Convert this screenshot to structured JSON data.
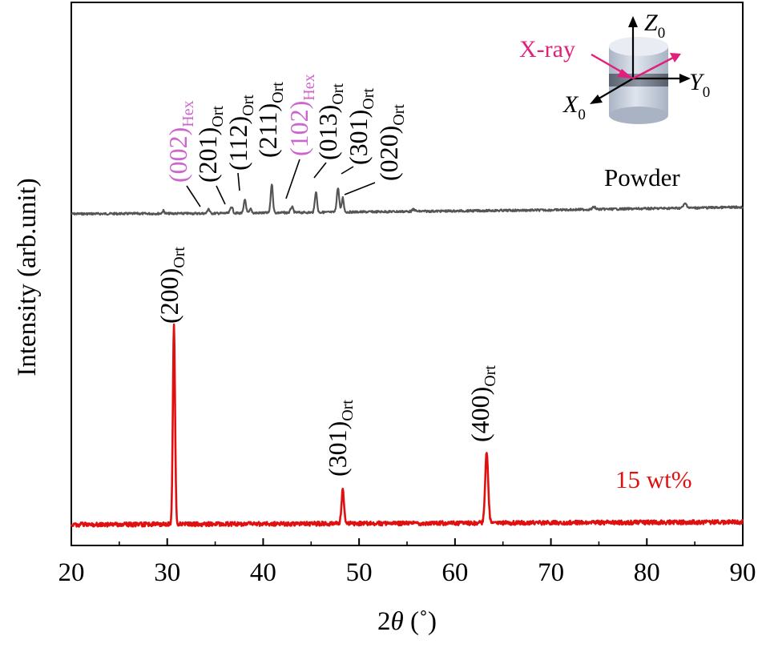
{
  "chart_data": {
    "type": "line",
    "xlabel_prefix": "2",
    "xlabel_var": "θ",
    "xlabel_suffix": " (˚)",
    "ylabel": "Intensity (arb.unit)",
    "xlim": [
      20,
      90
    ],
    "xticks": [
      "20",
      "30",
      "40",
      "50",
      "60",
      "70",
      "80",
      "90"
    ],
    "series": [
      {
        "name": "Powder",
        "color": "#555555",
        "label_color": "#000000",
        "baseline": [
          [
            20,
            0.0
          ],
          [
            35,
            0.1
          ],
          [
            50,
            0.4
          ],
          [
            70,
            0.8
          ],
          [
            90,
            1.4
          ]
        ],
        "peaks": [
          {
            "x": 29.6,
            "h": 0.6,
            "w": 0.15
          },
          {
            "x": 34.3,
            "h": 1.0,
            "w": 0.15
          },
          {
            "x": 36.7,
            "h": 1.4,
            "w": 0.18
          },
          {
            "x": 38.1,
            "h": 2.8,
            "w": 0.16
          },
          {
            "x": 38.7,
            "h": 0.8,
            "w": 0.15
          },
          {
            "x": 40.9,
            "h": 6.0,
            "w": 0.16
          },
          {
            "x": 43.0,
            "h": 1.2,
            "w": 0.18
          },
          {
            "x": 45.5,
            "h": 4.3,
            "w": 0.16
          },
          {
            "x": 47.8,
            "h": 5.0,
            "w": 0.18
          },
          {
            "x": 48.3,
            "h": 3.0,
            "w": 0.15
          },
          {
            "x": 55.7,
            "h": 0.4,
            "w": 0.2
          },
          {
            "x": 74.5,
            "h": 0.5,
            "w": 0.2
          },
          {
            "x": 84.0,
            "h": 0.9,
            "w": 0.25
          }
        ]
      },
      {
        "name": "15 wt%",
        "color": "#e01010",
        "label_color": "#e01010",
        "baseline": [
          [
            20,
            0.0
          ],
          [
            90,
            0.3
          ]
        ],
        "peaks": [
          {
            "x": 30.7,
            "h": 23.0,
            "w": 0.16
          },
          {
            "x": 48.3,
            "h": 4.0,
            "w": 0.18
          },
          {
            "x": 63.3,
            "h": 8.3,
            "w": 0.22
          }
        ]
      }
    ],
    "annotations": [
      {
        "text": "(002)",
        "sub": "Hex",
        "series": "Powder",
        "color": "#cc66cc"
      },
      {
        "text": "(201)",
        "sub": "Ort",
        "series": "Powder",
        "color": "#000000"
      },
      {
        "text": "(112)",
        "sub": "Ort",
        "series": "Powder",
        "color": "#000000"
      },
      {
        "text": "(211)",
        "sub": "Ort",
        "series": "Powder",
        "color": "#000000"
      },
      {
        "text": "(102)",
        "sub": "Hex",
        "series": "Powder",
        "color": "#cc66cc"
      },
      {
        "text": "(013)",
        "sub": "Ort",
        "series": "Powder",
        "color": "#000000"
      },
      {
        "text": "(301)",
        "sub": "Ort",
        "series": "Powder",
        "color": "#000000"
      },
      {
        "text": "(020)",
        "sub": "Ort",
        "series": "Powder",
        "color": "#000000"
      },
      {
        "text": "(200)",
        "sub": "Ort",
        "series": "15 wt%",
        "color": "#000000"
      },
      {
        "text": "(301)",
        "sub": "Ort",
        "series": "15 wt%",
        "color": "#000000"
      },
      {
        "text": "(400)",
        "sub": "Ort",
        "series": "15 wt%",
        "color": "#000000"
      }
    ],
    "inset": {
      "beam_label": "X-ray",
      "beam_color": "#e0207a",
      "axes": [
        {
          "letter": "Z",
          "sub": "0"
        },
        {
          "letter": "Y",
          "sub": "0"
        },
        {
          "letter": "X",
          "sub": "0"
        }
      ]
    }
  }
}
